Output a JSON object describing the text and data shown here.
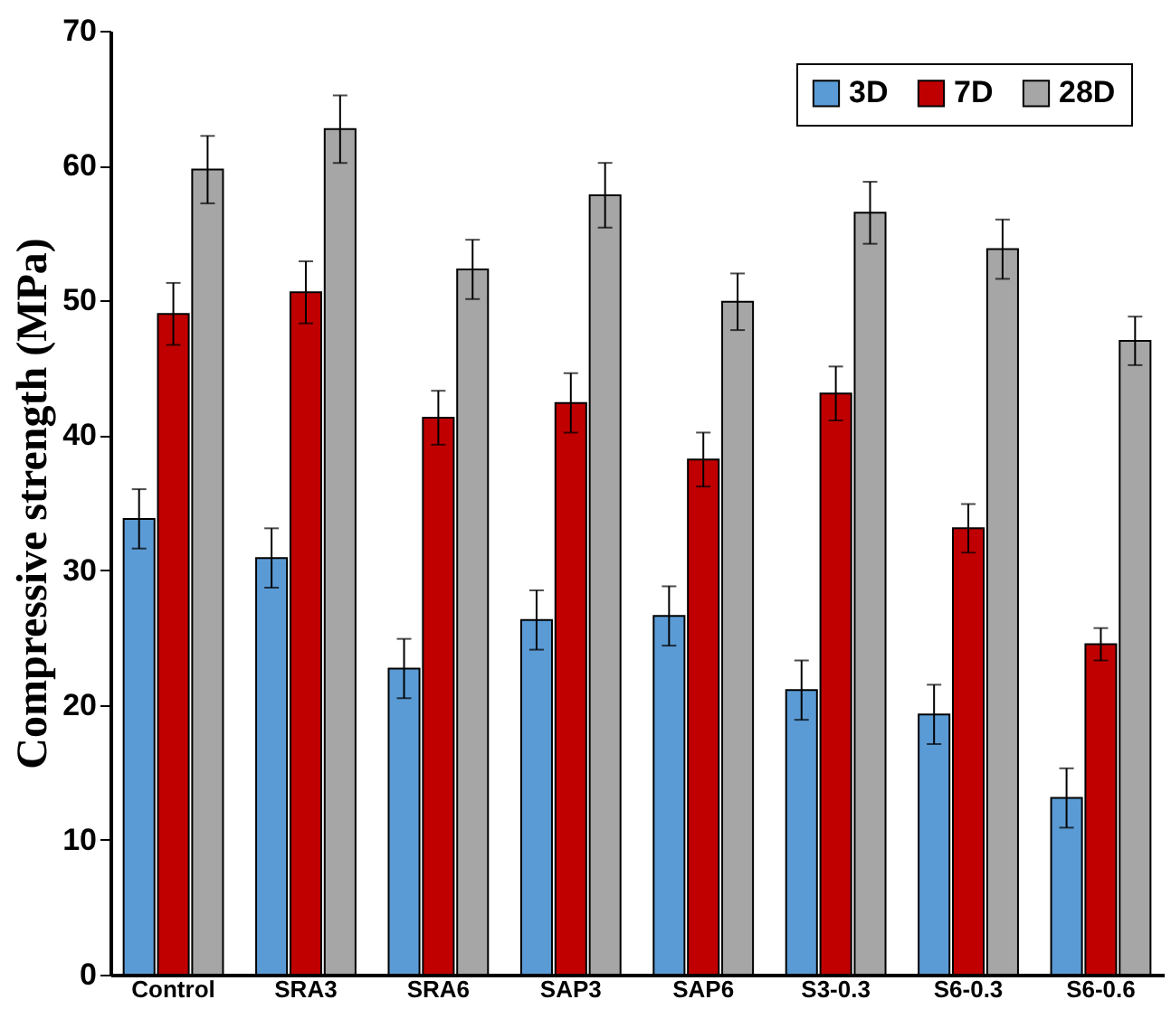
{
  "chart_data": {
    "type": "bar",
    "ylabel": "Compressive strength (MPa)",
    "categories": [
      "Control",
      "SRA3",
      "SRA6",
      "SAP3",
      "SAP6",
      "S3-0.3",
      "S6-0.3",
      "S6-0.6"
    ],
    "series": [
      {
        "name": "3D",
        "color": "#5b9bd5",
        "values": [
          33.8,
          30.9,
          22.7,
          26.3,
          26.6,
          21.1,
          19.3,
          13.1
        ],
        "errors": [
          2.2,
          2.2,
          2.2,
          2.2,
          2.2,
          2.2,
          2.2,
          2.2
        ]
      },
      {
        "name": "7D",
        "color": "#c00000",
        "values": [
          49.0,
          50.6,
          41.3,
          42.4,
          38.2,
          43.1,
          33.1,
          24.5
        ],
        "errors": [
          2.3,
          2.3,
          2.0,
          2.2,
          2.0,
          2.0,
          1.8,
          1.2
        ]
      },
      {
        "name": "28D",
        "color": "#a6a6a6",
        "values": [
          59.7,
          62.7,
          52.3,
          57.8,
          49.9,
          56.5,
          53.8,
          47.0
        ],
        "errors": [
          2.5,
          2.5,
          2.2,
          2.4,
          2.1,
          2.3,
          2.2,
          1.8
        ]
      }
    ],
    "ylim": [
      0,
      70
    ],
    "yticks": [
      0,
      10,
      20,
      30,
      40,
      50,
      60,
      70
    ],
    "grid": false,
    "legend": "top right"
  }
}
